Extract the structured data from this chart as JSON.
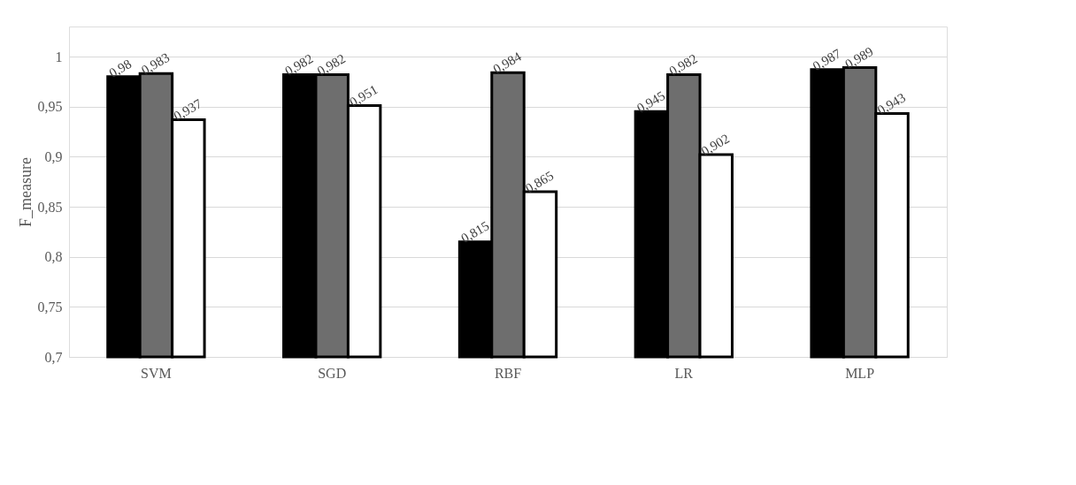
{
  "chart_data": {
    "type": "bar",
    "ylabel": "F_measure",
    "categories": [
      "SVM",
      "SGD",
      "RBF",
      "LR",
      "MLP"
    ],
    "series": [
      {
        "color": "#000000",
        "values": [
          0.98,
          0.982,
          0.815,
          0.945,
          0.987
        ],
        "value_labels": [
          "0,98",
          "0,982",
          "0,815",
          "0,945",
          "0,987"
        ]
      },
      {
        "color": "#6e6e6e",
        "values": [
          0.983,
          0.982,
          0.984,
          0.982,
          0.989
        ],
        "value_labels": [
          "0,983",
          "0,982",
          "0,984",
          "0,982",
          "0,989"
        ]
      },
      {
        "color": "#ffffff",
        "values": [
          0.937,
          0.951,
          0.865,
          0.902,
          0.943
        ],
        "value_labels": [
          "0,937",
          "0,951",
          "0,865",
          "0,902",
          "0,943"
        ]
      }
    ],
    "ylim": [
      0.7,
      1.03
    ],
    "yticks": [
      {
        "value": 0.7,
        "label": "0,7"
      },
      {
        "value": 0.75,
        "label": "0,75"
      },
      {
        "value": 0.8,
        "label": "0,8"
      },
      {
        "value": 0.85,
        "label": "0,85"
      },
      {
        "value": 0.9,
        "label": "0,9"
      },
      {
        "value": 0.95,
        "label": "0,95"
      },
      {
        "value": 1,
        "label": "1"
      }
    ],
    "grid": "y",
    "legend": false
  }
}
